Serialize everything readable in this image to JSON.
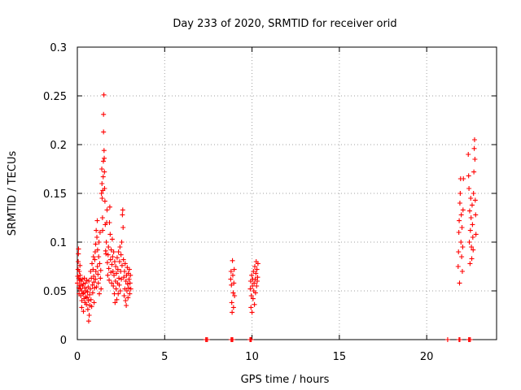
{
  "chart_data": {
    "type": "scatter",
    "title": "Day 233 of 2020, SRMTID for receiver orid",
    "xlabel": "GPS time / hours",
    "ylabel": "SRMTID / TECUs",
    "xlim": [
      0,
      24
    ],
    "ylim": [
      0,
      0.3
    ],
    "xticks": [
      "0",
      "5",
      "10",
      "15",
      "20"
    ],
    "xtick_values": [
      0,
      5,
      10,
      15,
      20
    ],
    "yticks": [
      "0",
      "0.05",
      "0.1",
      "0.15",
      "0.2",
      "0.25",
      "0.3"
    ],
    "ytick_values": [
      0,
      0.05,
      0.1,
      0.15,
      0.2,
      0.25,
      0.3
    ],
    "grid": true,
    "marker": "+",
    "color": "#ff0000",
    "series": [
      {
        "points": [
          [
            0.0,
            0.058
          ],
          [
            0.02,
            0.065
          ],
          [
            0.04,
            0.072
          ],
          [
            0.05,
            0.08
          ],
          [
            0.06,
            0.088
          ],
          [
            0.07,
            0.093
          ],
          [
            0.08,
            0.063
          ],
          [
            0.09,
            0.053
          ],
          [
            0.1,
            0.047
          ],
          [
            0.11,
            0.07
          ],
          [
            0.12,
            0.061
          ],
          [
            0.14,
            0.056
          ],
          [
            0.15,
            0.076
          ],
          [
            0.16,
            0.066
          ],
          [
            0.18,
            0.052
          ],
          [
            0.2,
            0.045
          ],
          [
            0.22,
            0.06
          ],
          [
            0.24,
            0.05
          ],
          [
            0.25,
            0.033
          ],
          [
            0.26,
            0.04
          ],
          [
            0.28,
            0.062
          ],
          [
            0.3,
            0.055
          ],
          [
            0.32,
            0.047
          ],
          [
            0.34,
            0.057
          ],
          [
            0.35,
            0.029
          ],
          [
            0.37,
            0.048
          ],
          [
            0.38,
            0.042
          ],
          [
            0.4,
            0.063
          ],
          [
            0.42,
            0.053
          ],
          [
            0.44,
            0.038
          ],
          [
            0.46,
            0.058
          ],
          [
            0.48,
            0.044
          ],
          [
            0.5,
            0.05
          ],
          [
            0.52,
            0.036
          ],
          [
            0.54,
            0.061
          ],
          [
            0.56,
            0.043
          ],
          [
            0.58,
            0.049
          ],
          [
            0.6,
            0.031
          ],
          [
            0.62,
            0.054
          ],
          [
            0.64,
            0.04
          ],
          [
            0.65,
            0.019
          ],
          [
            0.66,
            0.06
          ],
          [
            0.68,
            0.025
          ],
          [
            0.7,
            0.046
          ],
          [
            0.72,
            0.035
          ],
          [
            0.74,
            0.052
          ],
          [
            0.76,
            0.07
          ],
          [
            0.78,
            0.041
          ],
          [
            0.8,
            0.063
          ],
          [
            0.82,
            0.034
          ],
          [
            0.84,
            0.078
          ],
          [
            0.86,
            0.056
          ],
          [
            0.88,
            0.048
          ],
          [
            0.9,
            0.072
          ],
          [
            0.92,
            0.085
          ],
          [
            0.94,
            0.065
          ],
          [
            0.95,
            0.059
          ],
          [
            0.96,
            0.038
          ],
          [
            0.98,
            0.053
          ],
          [
            1.0,
            0.082
          ],
          [
            1.02,
            0.09
          ],
          [
            1.04,
            0.062
          ],
          [
            1.05,
            0.098
          ],
          [
            1.06,
            0.07
          ],
          [
            1.08,
            0.112
          ],
          [
            1.1,
            0.054
          ],
          [
            1.12,
            0.105
          ],
          [
            1.14,
            0.122
          ],
          [
            1.15,
            0.075
          ],
          [
            1.16,
            0.092
          ],
          [
            1.18,
            0.067
          ],
          [
            1.2,
            0.058
          ],
          [
            1.22,
            0.085
          ],
          [
            1.24,
            0.1
          ],
          [
            1.26,
            0.047
          ],
          [
            1.28,
            0.078
          ],
          [
            1.3,
            0.11
          ],
          [
            1.32,
            0.063
          ],
          [
            1.34,
            0.071
          ],
          [
            1.36,
            0.052
          ],
          [
            1.38,
            0.15
          ],
          [
            1.4,
            0.175
          ],
          [
            1.41,
            0.16
          ],
          [
            1.42,
            0.145
          ],
          [
            1.44,
            0.125
          ],
          [
            1.45,
            0.112
          ],
          [
            1.46,
            0.153
          ],
          [
            1.48,
            0.167
          ],
          [
            1.49,
            0.183
          ],
          [
            1.5,
            0.213
          ],
          [
            1.5,
            0.231
          ],
          [
            1.52,
            0.251
          ],
          [
            1.53,
            0.194
          ],
          [
            1.54,
            0.186
          ],
          [
            1.55,
            0.172
          ],
          [
            1.56,
            0.155
          ],
          [
            1.58,
            0.142
          ],
          [
            1.6,
            0.118
          ],
          [
            1.62,
            0.091
          ],
          [
            1.64,
            0.088
          ],
          [
            1.66,
            0.1
          ],
          [
            1.68,
            0.12
          ],
          [
            1.7,
            0.133
          ],
          [
            1.72,
            0.079
          ],
          [
            1.74,
            0.066
          ],
          [
            1.76,
            0.087
          ],
          [
            1.78,
            0.095
          ],
          [
            1.8,
            0.073
          ],
          [
            1.82,
            0.061
          ],
          [
            1.84,
            0.12
          ],
          [
            1.86,
            0.136
          ],
          [
            1.88,
            0.108
          ],
          [
            1.9,
            0.082
          ],
          [
            1.92,
            0.069
          ],
          [
            1.94,
            0.092
          ],
          [
            1.96,
            0.058
          ],
          [
            1.98,
            0.077
          ],
          [
            2.0,
            0.103
          ],
          [
            2.02,
            0.085
          ],
          [
            2.04,
            0.07
          ],
          [
            2.06,
            0.055
          ],
          [
            2.08,
            0.09
          ],
          [
            2.1,
            0.066
          ],
          [
            2.12,
            0.047
          ],
          [
            2.14,
            0.08
          ],
          [
            2.16,
            0.038
          ],
          [
            2.18,
            0.06
          ],
          [
            2.2,
            0.075
          ],
          [
            2.22,
            0.052
          ],
          [
            2.24,
            0.068
          ],
          [
            2.26,
            0.041
          ],
          [
            2.28,
            0.084
          ],
          [
            2.3,
            0.058
          ],
          [
            2.32,
            0.072
          ],
          [
            2.34,
            0.047
          ],
          [
            2.36,
            0.09
          ],
          [
            2.38,
            0.063
          ],
          [
            2.4,
            0.056
          ],
          [
            2.42,
            0.08
          ],
          [
            2.44,
            0.095
          ],
          [
            2.46,
            0.05
          ],
          [
            2.48,
            0.07
          ],
          [
            2.5,
            0.087
          ],
          [
            2.52,
            0.062
          ],
          [
            2.54,
            0.1
          ],
          [
            2.56,
            0.076
          ],
          [
            2.58,
            0.128
          ],
          [
            2.6,
            0.133
          ],
          [
            2.62,
            0.115
          ],
          [
            2.64,
            0.082
          ],
          [
            2.66,
            0.064
          ],
          [
            2.68,
            0.045
          ],
          [
            2.7,
            0.07
          ],
          [
            2.72,
            0.052
          ],
          [
            2.74,
            0.078
          ],
          [
            2.76,
            0.04
          ],
          [
            2.78,
            0.06
          ],
          [
            2.8,
            0.035
          ],
          [
            2.82,
            0.066
          ],
          [
            2.84,
            0.05
          ],
          [
            2.86,
            0.074
          ],
          [
            2.88,
            0.057
          ],
          [
            2.9,
            0.043
          ],
          [
            2.92,
            0.068
          ],
          [
            2.94,
            0.053
          ],
          [
            2.96,
            0.062
          ],
          [
            2.98,
            0.072
          ],
          [
            3.0,
            0.047
          ],
          [
            3.02,
            0.058
          ],
          [
            3.04,
            0.066
          ],
          [
            3.06,
            0.052
          ],
          [
            7.35,
            0.0
          ],
          [
            7.4,
            0.0
          ],
          [
            7.45,
            0.0
          ],
          [
            8.8,
            0.0
          ],
          [
            8.85,
            0.0
          ],
          [
            8.9,
            0.0
          ],
          [
            9.88,
            0.0
          ],
          [
            9.92,
            0.0
          ],
          [
            9.96,
            0.0
          ],
          [
            8.78,
            0.062
          ],
          [
            8.8,
            0.07
          ],
          [
            8.82,
            0.056
          ],
          [
            8.84,
            0.038
          ],
          [
            8.86,
            0.028
          ],
          [
            8.88,
            0.081
          ],
          [
            8.9,
            0.066
          ],
          [
            8.92,
            0.048
          ],
          [
            8.94,
            0.033
          ],
          [
            8.96,
            0.058
          ],
          [
            8.98,
            0.072
          ],
          [
            9.0,
            0.045
          ],
          [
            9.9,
            0.052
          ],
          [
            9.92,
            0.06
          ],
          [
            9.94,
            0.033
          ],
          [
            9.96,
            0.045
          ],
          [
            9.98,
            0.066
          ],
          [
            10.0,
            0.028
          ],
          [
            10.02,
            0.055
          ],
          [
            10.04,
            0.062
          ],
          [
            10.06,
            0.042
          ],
          [
            10.08,
            0.07
          ],
          [
            10.1,
            0.05
          ],
          [
            10.12,
            0.058
          ],
          [
            10.14,
            0.036
          ],
          [
            10.16,
            0.075
          ],
          [
            10.18,
            0.062
          ],
          [
            10.2,
            0.048
          ],
          [
            10.22,
            0.068
          ],
          [
            10.24,
            0.08
          ],
          [
            10.26,
            0.055
          ],
          [
            10.28,
            0.072
          ],
          [
            10.3,
            0.06
          ],
          [
            10.32,
            0.064
          ],
          [
            10.34,
            0.078
          ],
          [
            21.2,
            0.0
          ],
          [
            21.85,
            0.0
          ],
          [
            21.9,
            0.0
          ],
          [
            22.4,
            0.0
          ],
          [
            22.45,
            0.0
          ],
          [
            22.5,
            0.0
          ],
          [
            21.8,
            0.075
          ],
          [
            21.82,
            0.09
          ],
          [
            21.84,
            0.11
          ],
          [
            21.86,
            0.122
          ],
          [
            21.88,
            0.058
          ],
          [
            21.9,
            0.14
          ],
          [
            21.92,
            0.15
          ],
          [
            21.94,
            0.165
          ],
          [
            21.96,
            0.1
          ],
          [
            21.98,
            0.128
          ],
          [
            22.0,
            0.085
          ],
          [
            22.02,
            0.115
          ],
          [
            22.04,
            0.07
          ],
          [
            22.06,
            0.095
          ],
          [
            22.08,
            0.133
          ],
          [
            22.1,
            0.165
          ],
          [
            22.38,
            0.19
          ],
          [
            22.4,
            0.168
          ],
          [
            22.42,
            0.155
          ],
          [
            22.44,
            0.1
          ],
          [
            22.46,
            0.132
          ],
          [
            22.48,
            0.078
          ],
          [
            22.5,
            0.112
          ],
          [
            22.52,
            0.145
          ],
          [
            22.54,
            0.125
          ],
          [
            22.56,
            0.095
          ],
          [
            22.58,
            0.083
          ],
          [
            22.6,
            0.138
          ],
          [
            22.62,
            0.118
          ],
          [
            22.64,
            0.105
          ],
          [
            22.66,
            0.092
          ],
          [
            22.68,
            0.15
          ],
          [
            22.7,
            0.172
          ],
          [
            22.72,
            0.196
          ],
          [
            22.74,
            0.205
          ],
          [
            22.76,
            0.185
          ],
          [
            22.78,
            0.143
          ],
          [
            22.8,
            0.128
          ],
          [
            22.82,
            0.108
          ]
        ]
      }
    ]
  }
}
